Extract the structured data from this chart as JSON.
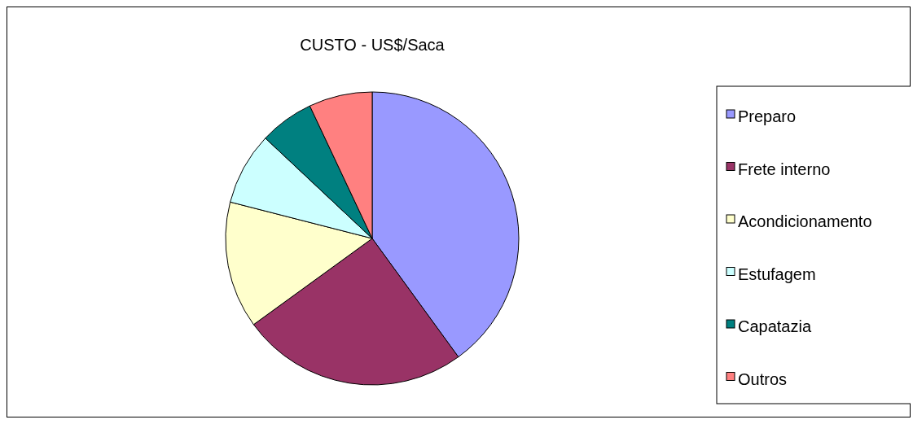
{
  "chart_data": {
    "type": "pie",
    "title": "CUSTO - US$/Saca",
    "categories": [
      "Preparo",
      "Frete interno",
      "Acondicionamento",
      "Estufagem",
      "Capatazia",
      "Outros"
    ],
    "values": [
      40,
      25,
      14,
      8,
      6,
      7
    ],
    "colors": [
      "#9999ff",
      "#993366",
      "#ffffcc",
      "#ccffff",
      "#008080",
      "#ff8080"
    ],
    "legend": "right"
  }
}
